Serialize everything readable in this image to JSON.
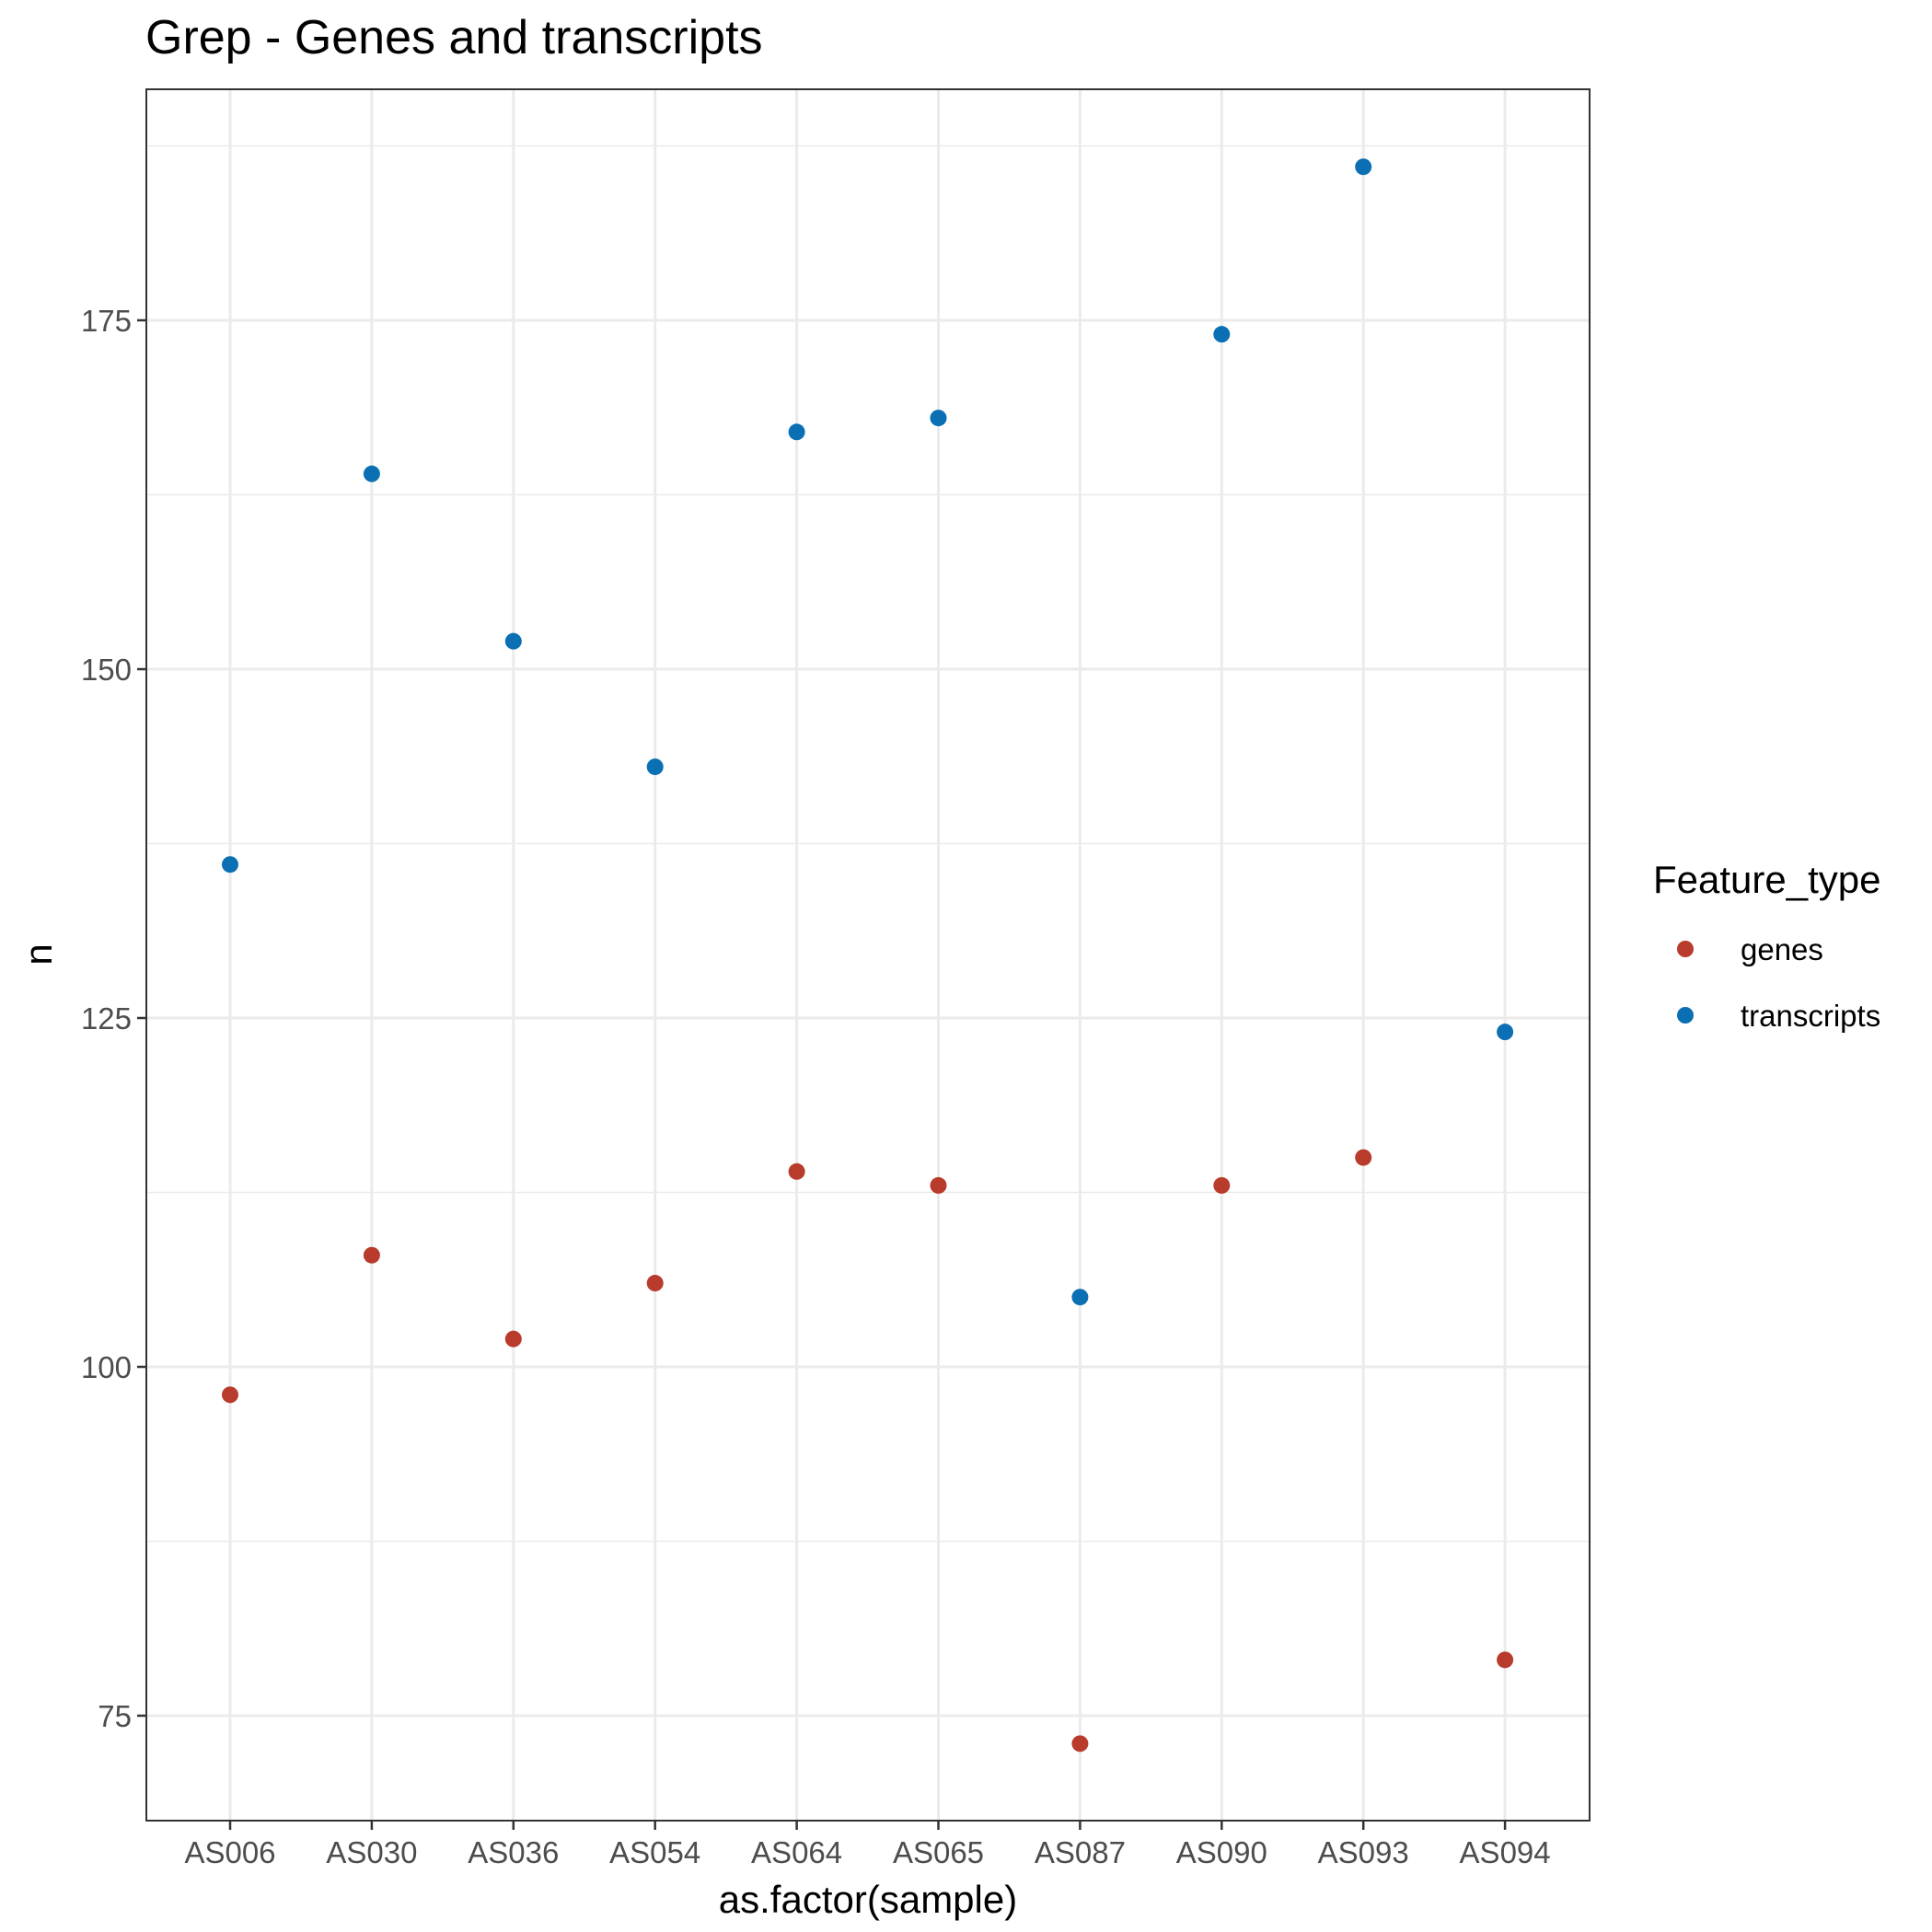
{
  "chart_data": {
    "type": "scatter",
    "title": "Grep - Genes and transcripts",
    "xlabel": "as.factor(sample)",
    "ylabel": "n",
    "categories": [
      "AS006",
      "AS030",
      "AS036",
      "AS054",
      "AS064",
      "AS065",
      "AS087",
      "AS090",
      "AS093",
      "AS094"
    ],
    "ylim": [
      67,
      191
    ],
    "yticks": [
      75,
      100,
      125,
      150,
      175
    ],
    "y_minor_ticks": [
      87.5,
      112.5,
      137.5,
      162.5,
      187.5
    ],
    "grid": true,
    "legend": {
      "title": "Feature_type",
      "placement": "right"
    },
    "series": [
      {
        "name": "genes",
        "color": "#b83b2c",
        "values": [
          98,
          108,
          102,
          106,
          114,
          113,
          73,
          113,
          115,
          79
        ]
      },
      {
        "name": "transcripts",
        "color": "#0b6fb3",
        "values": [
          136,
          164,
          152,
          143,
          167,
          168,
          105,
          174,
          186,
          124
        ]
      }
    ]
  }
}
